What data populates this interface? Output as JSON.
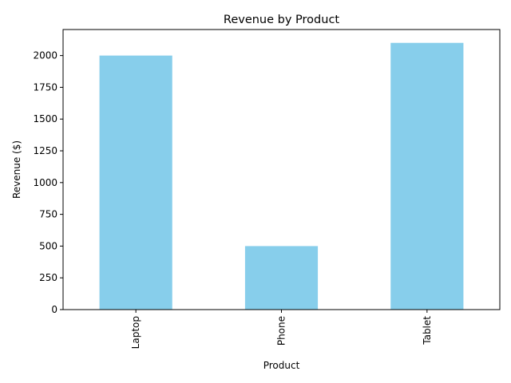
{
  "chart_data": {
    "type": "bar",
    "title": "Revenue by Product",
    "xlabel": "Product",
    "ylabel": "Revenue ($)",
    "categories": [
      "Laptop",
      "Phone",
      "Tablet"
    ],
    "values": [
      2000,
      500,
      2100
    ],
    "ylim": [
      0,
      2205
    ],
    "yticks": [
      0,
      250,
      500,
      750,
      1000,
      1250,
      1500,
      1750,
      2000
    ],
    "bar_color": "#87ceeb",
    "grid": false,
    "legend": "none",
    "x_tick_rotation": "vertical"
  }
}
